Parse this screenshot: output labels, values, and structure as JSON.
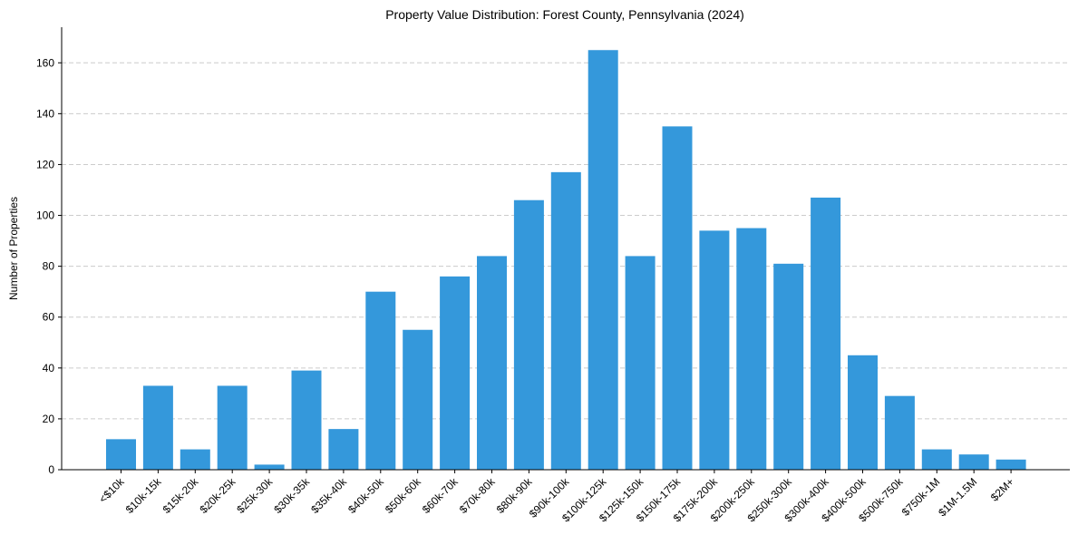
{
  "chart_data": {
    "type": "bar",
    "title": "Property Value Distribution: Forest County, Pennsylvania (2024)",
    "xlabel": "",
    "ylabel": "Number of Properties",
    "categories": [
      "<$10k",
      "$10k-15k",
      "$15k-20k",
      "$20k-25k",
      "$25k-30k",
      "$30k-35k",
      "$35k-40k",
      "$40k-50k",
      "$50k-60k",
      "$60k-70k",
      "$70k-80k",
      "$80k-90k",
      "$90k-100k",
      "$100k-125k",
      "$125k-150k",
      "$150k-175k",
      "$175k-200k",
      "$200k-250k",
      "$250k-300k",
      "$300k-400k",
      "$400k-500k",
      "$500k-750k",
      "$750k-1M",
      "$1M-1.5M",
      "$2M+"
    ],
    "values": [
      12,
      33,
      8,
      33,
      2,
      39,
      16,
      70,
      55,
      76,
      84,
      106,
      117,
      165,
      84,
      135,
      94,
      95,
      81,
      107,
      45,
      29,
      8,
      6,
      4
    ],
    "ylim": [
      0,
      174
    ],
    "yticks": [
      0,
      20,
      40,
      60,
      80,
      100,
      120,
      140,
      160
    ],
    "grid": "y-dashed",
    "bar_color": "#3498db",
    "legend": "none"
  }
}
